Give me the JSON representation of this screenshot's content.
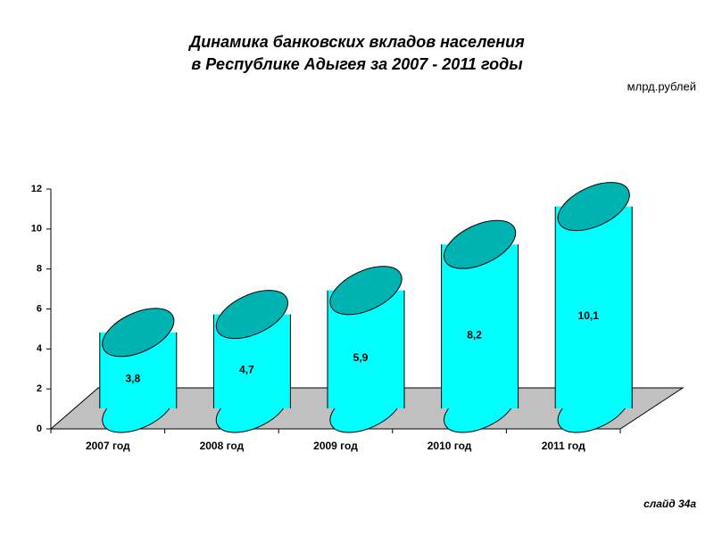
{
  "chart_data": {
    "type": "bar",
    "title": [
      "Динамика банковских вкладов населения",
      "в Республике Адыгея за 2007 - 2011 годы"
    ],
    "unit_label": "млрд.рублей",
    "note": "слайд 34а",
    "categories": [
      "2007 год",
      "2008 год",
      "2009 год",
      "2010 год",
      "2011 год"
    ],
    "values": [
      3.8,
      4.7,
      5.9,
      8.2,
      10.1
    ],
    "value_labels": [
      "3,8",
      "4,7",
      "5,9",
      "8,2",
      "10,1"
    ],
    "color": "#00ffff",
    "ylim": [
      0,
      12
    ],
    "yticks": [
      0,
      2,
      4,
      6,
      8,
      10,
      12
    ]
  }
}
